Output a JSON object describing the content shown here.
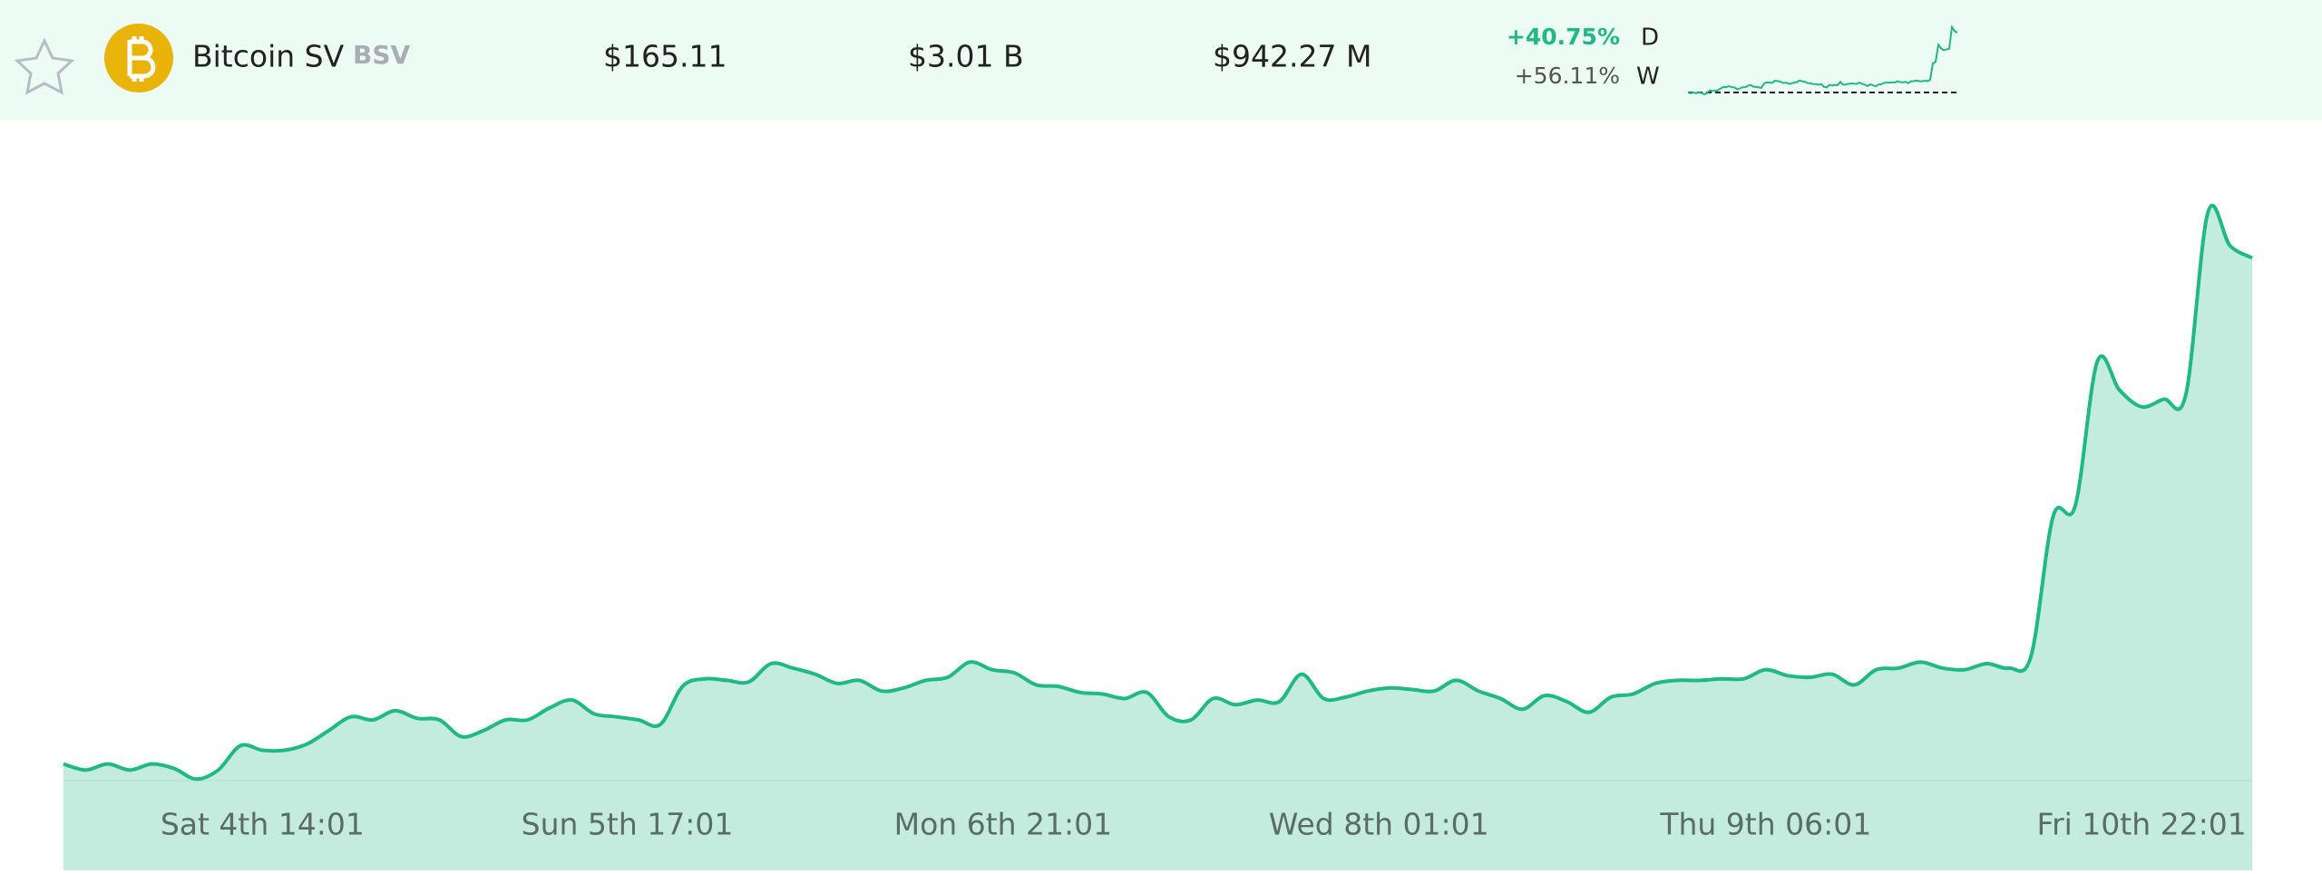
{
  "coin": {
    "name": "Bitcoin SV",
    "symbol": "BSV",
    "price": "$165.11",
    "market_cap": "$3.01 B",
    "volume": "$942.27 M",
    "change_day": "+40.75%",
    "change_day_period": "D",
    "change_week": "+56.11%",
    "change_week_period": "W"
  },
  "chart_data": {
    "type": "area",
    "color": "#1fb985",
    "fill": "#c4ecde",
    "x": [
      0,
      1,
      2,
      3,
      4,
      5,
      6,
      7,
      8,
      9,
      10,
      11,
      12,
      13,
      14,
      15,
      16,
      17,
      18,
      19,
      20,
      21,
      22,
      23,
      24,
      25,
      26,
      27,
      28,
      29,
      30,
      31,
      32,
      33,
      34,
      35,
      36,
      37,
      38,
      39,
      40,
      41,
      42,
      43,
      44,
      45,
      46,
      47,
      48,
      49,
      50,
      51,
      52,
      53,
      54,
      55,
      56,
      57,
      58,
      59,
      60,
      61,
      62,
      63,
      64,
      65,
      66,
      67,
      68,
      69,
      70,
      71,
      72,
      73,
      74,
      75,
      76,
      77,
      78,
      79,
      80,
      81,
      82,
      83,
      84,
      85,
      86,
      87,
      88,
      89,
      90,
      91,
      92,
      93,
      94,
      95,
      96,
      97,
      98,
      99
    ],
    "values": [
      105.8,
      105.09,
      105.8,
      105.09,
      105.8,
      105.27,
      104.03,
      105.09,
      107.94,
      107.41,
      107.41,
      108.12,
      109.72,
      111.33,
      110.97,
      112.04,
      111.15,
      110.97,
      109.01,
      109.72,
      110.97,
      110.97,
      112.39,
      113.29,
      111.68,
      111.33,
      110.97,
      110.44,
      114.89,
      115.78,
      115.6,
      115.42,
      117.56,
      117.03,
      116.32,
      115.24,
      115.6,
      114.35,
      114.71,
      115.6,
      115.96,
      117.74,
      116.85,
      116.49,
      115.07,
      114.89,
      114.18,
      114,
      113.47,
      114.18,
      111.33,
      110.97,
      113.47,
      112.75,
      113.29,
      113.11,
      116.32,
      113.47,
      113.64,
      114.35,
      114.71,
      114.53,
      114.35,
      115.6,
      114.35,
      113.47,
      112.22,
      113.82,
      113.11,
      111.86,
      113.64,
      114,
      115.24,
      115.6,
      115.6,
      115.78,
      115.78,
      116.85,
      116.14,
      115.96,
      116.32,
      115.07,
      116.85,
      117.03,
      117.74,
      117.03,
      116.85,
      117.56,
      117.03,
      118.45,
      134.84,
      136.08,
      153,
      149.62,
      147.66,
      148.55,
      149.08,
      170.46,
      166.54,
      165.11
    ],
    "xlim": [
      0,
      99
    ],
    "ylim": [
      103.85,
      180.25
    ],
    "xticks": [
      {
        "value": 9,
        "label": "Sat 4th 14:01"
      },
      {
        "value": 25.5,
        "label": "Sun 5th 17:01"
      },
      {
        "value": 42.5,
        "label": "Mon 6th 21:01"
      },
      {
        "value": 59.5,
        "label": "Wed 8th 01:01"
      },
      {
        "value": 77,
        "label": "Thu 9th 06:01"
      },
      {
        "value": 94,
        "label": "Fri 10th 22:01"
      }
    ]
  }
}
